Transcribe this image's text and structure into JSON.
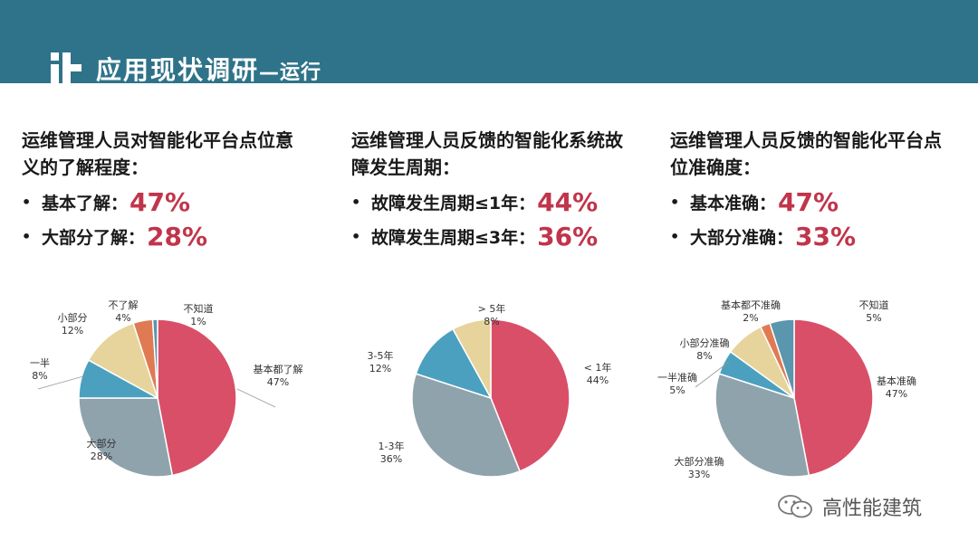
{
  "page": {
    "title": "应用现状调研",
    "subtitle": "—运行"
  },
  "columns": [
    {
      "heading": "运维管理人员对智能化平台点位意义的了解程度：",
      "stats": [
        {
          "label": "基本了解：",
          "value": "47%"
        },
        {
          "label": "大部分了解：",
          "value": "28%"
        }
      ]
    },
    {
      "heading": "运维管理人员反馈的智能化系统故障发生周期：",
      "stats": [
        {
          "label": "故障发生周期≤1年：",
          "value": "44%"
        },
        {
          "label": "故障发生周期≤3年：",
          "value": "36%"
        }
      ]
    },
    {
      "heading": "运维管理人员反馈的智能化平台点位准确度：",
      "stats": [
        {
          "label": "基本准确：",
          "value": "47%"
        },
        {
          "label": "大部分准确：",
          "value": "33%"
        }
      ]
    }
  ],
  "chart_data": [
    {
      "type": "pie",
      "slices": [
        {
          "name": "基本都了解",
          "value": 47,
          "label": "47%",
          "color": "#d94f68"
        },
        {
          "name": "大部分",
          "value": 28,
          "label": "28%",
          "color": "#8fa3ad"
        },
        {
          "name": "一半",
          "value": 8,
          "label": "8%",
          "color": "#4ba0bf"
        },
        {
          "name": "小部分",
          "value": 12,
          "label": "12%",
          "color": "#e6d49c"
        },
        {
          "name": "不了解",
          "value": 4,
          "label": "4%",
          "color": "#e07a52"
        },
        {
          "name": "不知道",
          "value": 1,
          "label": "1%",
          "color": "#5a96ad"
        }
      ]
    },
    {
      "type": "pie",
      "slices": [
        {
          "name": "< 1年",
          "value": 44,
          "label": "44%",
          "color": "#d94f68"
        },
        {
          "name": "1-3年",
          "value": 36,
          "label": "36%",
          "color": "#8fa3ad"
        },
        {
          "name": "3-5年",
          "value": 12,
          "label": "12%",
          "color": "#4ba0bf"
        },
        {
          "name": "> 5年",
          "value": 8,
          "label": "8%",
          "color": "#e6d49c"
        }
      ]
    },
    {
      "type": "pie",
      "slices": [
        {
          "name": "基本准确",
          "value": 47,
          "label": "47%",
          "color": "#d94f68"
        },
        {
          "name": "大部分准确",
          "value": 33,
          "label": "33%",
          "color": "#8fa3ad"
        },
        {
          "name": "一半准确",
          "value": 5,
          "label": "5%",
          "color": "#4ba0bf"
        },
        {
          "name": "小部分准确",
          "value": 8,
          "label": "8%",
          "color": "#e6d49c"
        },
        {
          "name": "基本都不准确",
          "value": 2,
          "label": "2%",
          "color": "#e07a52"
        },
        {
          "name": "不知道",
          "value": 5,
          "label": "5%",
          "color": "#5a96ad"
        }
      ]
    }
  ],
  "watermark": {
    "text": "高性能建筑",
    "icon": "wechat-icon"
  }
}
